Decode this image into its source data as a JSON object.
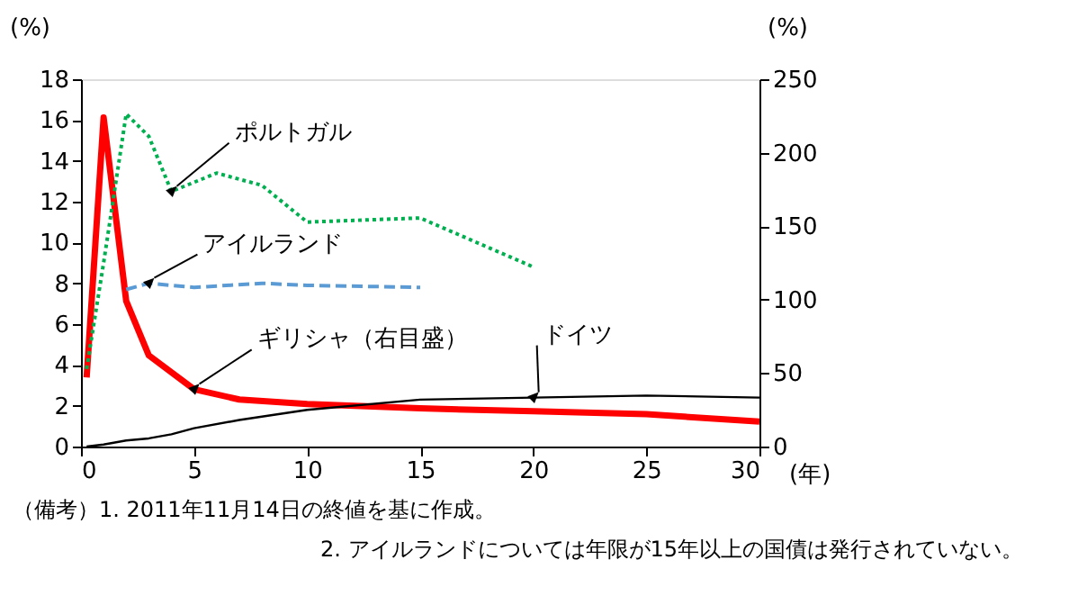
{
  "chart_data": {
    "type": "line",
    "ylabel": "(%)",
    "y2label": "(%)",
    "xlabel": "(年)",
    "xlim": [
      0,
      30
    ],
    "xticks": [
      0,
      5,
      10,
      15,
      20,
      25,
      30
    ],
    "ylim": [
      0,
      18
    ],
    "yticks": [
      0,
      2,
      4,
      6,
      8,
      10,
      12,
      14,
      16,
      18
    ],
    "y2lim": [
      0,
      250
    ],
    "y2ticks": [
      0,
      50,
      100,
      150,
      200,
      250
    ],
    "grid": false,
    "series": [
      {
        "name": "ポルトガル",
        "color": "#00b050",
        "line_style": "dotted",
        "x": [
          0.25,
          1,
          2,
          3,
          4,
          6,
          8,
          10,
          15,
          20
        ],
        "values": [
          3.8,
          9,
          16.3,
          15.2,
          12.5,
          13.4,
          12.8,
          11.0,
          11.2,
          8.8
        ]
      },
      {
        "name": "アイルランド",
        "color": "#5b9bd5",
        "line_style": "dashed",
        "x": [
          2,
          3,
          5,
          8,
          10,
          15
        ],
        "values": [
          7.7,
          8.0,
          7.8,
          8.0,
          7.9,
          7.8
        ]
      },
      {
        "name": "ギリシャ（右目盛）",
        "color": "#ff0000",
        "line_style": "solid",
        "axis": "y2",
        "x": [
          0.25,
          1,
          2,
          3,
          5,
          7,
          10,
          15,
          20,
          25,
          30
        ],
        "values": [
          47,
          224,
          99,
          62,
          39,
          32,
          29,
          26,
          24,
          22,
          17
        ]
      },
      {
        "name": "ドイツ",
        "color": "#000000",
        "line_style": "solid",
        "x": [
          0.25,
          1,
          2,
          3,
          4,
          5,
          7,
          10,
          15,
          20,
          25,
          30
        ],
        "values": [
          0,
          0.1,
          0.3,
          0.4,
          0.6,
          0.9,
          1.3,
          1.8,
          2.3,
          2.4,
          2.5,
          2.4
        ]
      }
    ],
    "annotations": [
      "（備考）1. 2011年11月14日の終値を基に作成。",
      "2. アイルランドについては年限が15年以上の国債は発行されていない。"
    ]
  }
}
